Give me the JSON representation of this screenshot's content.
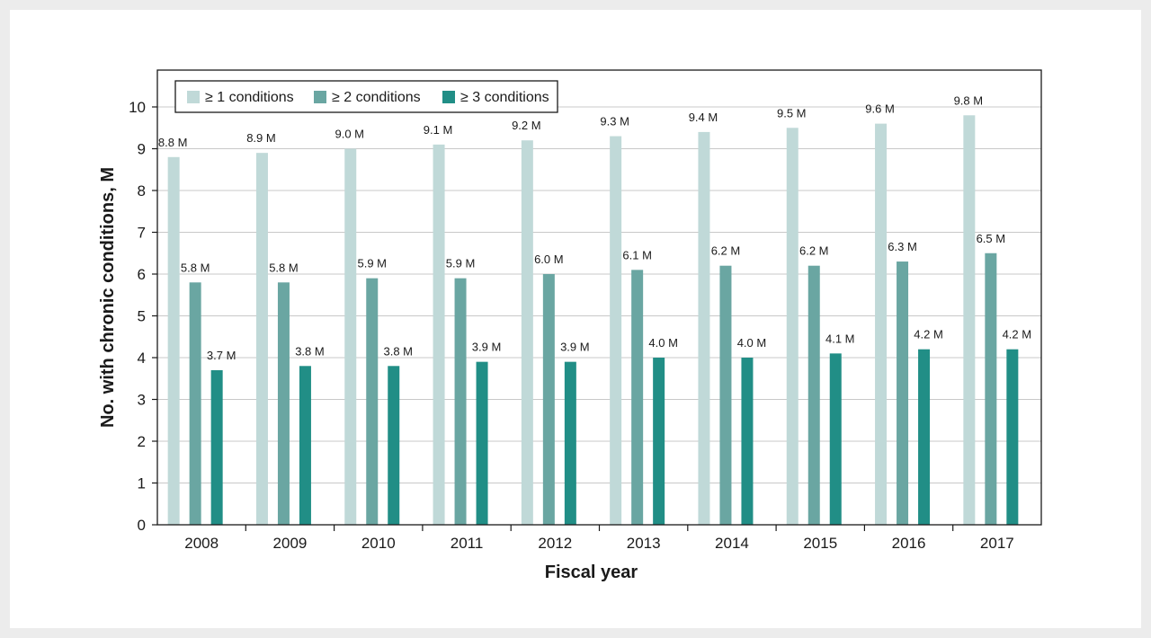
{
  "chart_data": {
    "type": "bar",
    "categories": [
      "2008",
      "2009",
      "2010",
      "2011",
      "2012",
      "2013",
      "2014",
      "2015",
      "2016",
      "2017"
    ],
    "series": [
      {
        "name": "≥ 1 conditions",
        "color": "#c0d9d8",
        "values": [
          8.8,
          8.9,
          9.0,
          9.1,
          9.2,
          9.3,
          9.4,
          9.5,
          9.6,
          9.8
        ],
        "labels": [
          "8.8 M",
          "8.9 M",
          "9.0 M",
          "9.1 M",
          "9.2 M",
          "9.3 M",
          "9.4 M",
          "9.5 M",
          "9.6 M",
          "9.8 M"
        ]
      },
      {
        "name": "≥ 2 conditions",
        "color": "#6aa6a2",
        "values": [
          5.8,
          5.8,
          5.9,
          5.9,
          6.0,
          6.1,
          6.2,
          6.2,
          6.3,
          6.5
        ],
        "labels": [
          "5.8 M",
          "5.8 M",
          "5.9 M",
          "5.9 M",
          "6.0 M",
          "6.1 M",
          "6.2 M",
          "6.2 M",
          "6.3 M",
          "6.5 M"
        ]
      },
      {
        "name": "≥ 3 conditions",
        "color": "#218e86",
        "values": [
          3.7,
          3.8,
          3.8,
          3.9,
          3.9,
          4.0,
          4.0,
          4.1,
          4.2,
          4.2
        ],
        "labels": [
          "3.7 M",
          "3.8 M",
          "3.8 M",
          "3.9 M",
          "3.9 M",
          "4.0 M",
          "4.0 M",
          "4.1 M",
          "4.2 M",
          "4.2 M"
        ]
      }
    ],
    "xlabel": "Fiscal year",
    "ylabel": "No. with chronic conditions, M",
    "ylim": [
      0,
      10
    ],
    "yticks": [
      0,
      1,
      2,
      3,
      4,
      5,
      6,
      7,
      8,
      9,
      10
    ],
    "grid": true,
    "legend": "top-left"
  }
}
